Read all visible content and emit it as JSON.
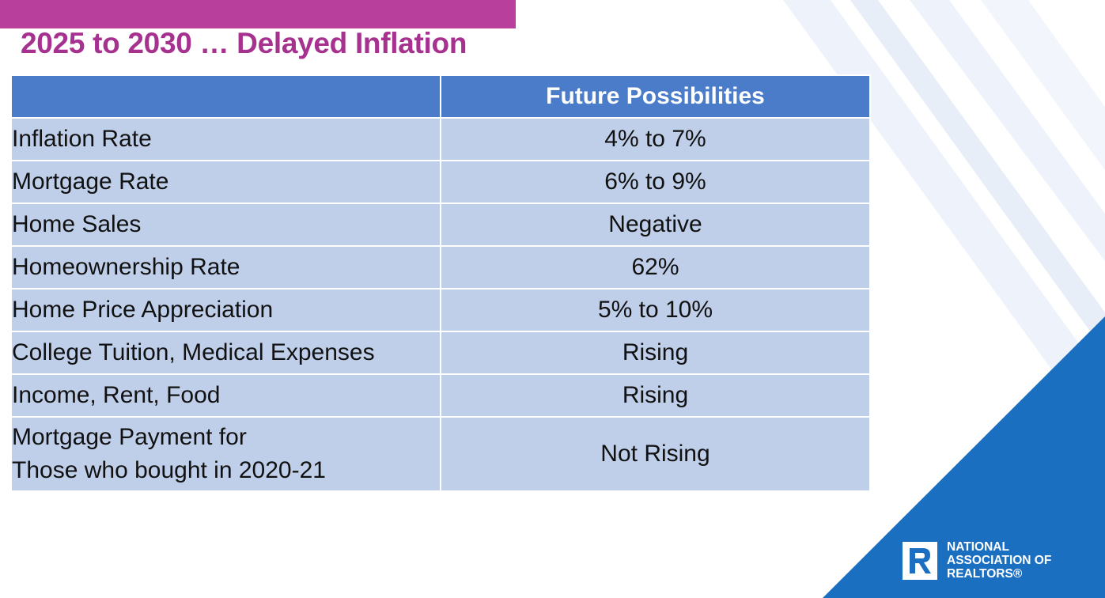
{
  "slide": {
    "title": "2025 to 2030 … Delayed Inflation"
  },
  "table": {
    "header": [
      "",
      "Future Possibilities"
    ],
    "rows": [
      {
        "label": "Inflation Rate",
        "value": "4% to 7%"
      },
      {
        "label": "Mortgage Rate",
        "value": "6% to 9%"
      },
      {
        "label": "Home Sales",
        "value": "Negative"
      },
      {
        "label": "Homeownership Rate",
        "value": "62%"
      },
      {
        "label": "Home Price Appreciation",
        "value": "5% to 10%"
      },
      {
        "label": "College Tuition, Medical Expenses",
        "value": "Rising"
      },
      {
        "label": "Income, Rent, Food",
        "value": "Rising"
      },
      {
        "label_line1": "Mortgage Payment for",
        "label_line2": "Those who bought in 2020-21",
        "value": "Not Rising"
      }
    ]
  },
  "logo": {
    "line1": "NATIONAL",
    "line2": "ASSOCIATION OF",
    "line3": "REALTORS®"
  },
  "colors": {
    "accent_bar": "#b8409c",
    "title": "#a7318f",
    "header_bg": "#4a7cc9",
    "cell_bg": "#bfcfea",
    "corner_blue": "#1b6fc0"
  }
}
